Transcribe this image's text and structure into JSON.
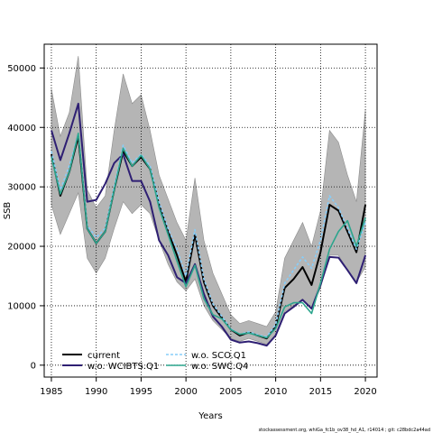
{
  "chart_data": {
    "type": "line",
    "xlabel": "Years",
    "ylabel": "SSB",
    "xlim": [
      1984.2,
      2021.3
    ],
    "ylim": [
      -2000,
      54000
    ],
    "xticks": [
      1985,
      1990,
      1995,
      2000,
      2005,
      2010,
      2015,
      2020
    ],
    "yticks": [
      0,
      10000,
      20000,
      30000,
      40000,
      50000
    ],
    "grid": true,
    "legend_position": "bottom-left",
    "x": [
      1985,
      1986,
      1987,
      1988,
      1989,
      1990,
      1991,
      1992,
      1993,
      1994,
      1995,
      1996,
      1997,
      1998,
      1999,
      2000,
      2001,
      2002,
      2003,
      2004,
      2005,
      2006,
      2007,
      2008,
      2009,
      2010,
      2011,
      2012,
      2013,
      2014,
      2015,
      2016,
      2017,
      2018,
      2019,
      2020
    ],
    "band": {
      "upper": [
        46500,
        38500,
        42500,
        52000,
        29500,
        26500,
        28500,
        39500,
        49000,
        44000,
        45500,
        39500,
        32000,
        28000,
        24000,
        21000,
        31500,
        21000,
        15500,
        12000,
        8500,
        7000,
        7500,
        7000,
        6500,
        9000,
        18000,
        21000,
        24000,
        20000,
        26000,
        39500,
        37500,
        32000,
        27500,
        43000
      ],
      "lower": [
        27000,
        22000,
        25500,
        29000,
        18000,
        15500,
        18000,
        23000,
        27500,
        25500,
        27000,
        25500,
        21000,
        17000,
        14000,
        12500,
        14500,
        10000,
        7500,
        6000,
        4500,
        4000,
        4500,
        4000,
        3500,
        5000,
        9000,
        10000,
        11000,
        9500,
        13000,
        18500,
        18500,
        16000,
        14000,
        16500
      ]
    },
    "series": [
      {
        "name": "current",
        "color": "#000000",
        "dash": "solid",
        "values": [
          35500,
          28500,
          32500,
          38500,
          23000,
          20500,
          22500,
          29500,
          36000,
          33500,
          35000,
          33000,
          27000,
          22500,
          18500,
          14000,
          22000,
          14000,
          10000,
          8000,
          6000,
          5000,
          5500,
          5000,
          4500,
          6500,
          13000,
          14500,
          16500,
          13500,
          19000,
          27000,
          26000,
          22500,
          19000,
          27000
        ]
      },
      {
        "name": "w.o. WCIBTS.Q1",
        "color": "#2e1f73",
        "dash": "solid",
        "values": [
          39500,
          34500,
          39000,
          44000,
          27500,
          27800,
          30500,
          34000,
          35500,
          31000,
          31000,
          27500,
          21000,
          18500,
          14800,
          13800,
          17000,
          12000,
          8200,
          6500,
          4300,
          3800,
          4000,
          3700,
          3300,
          5000,
          8700,
          9800,
          11000,
          9500,
          13500,
          18200,
          18100,
          16000,
          13800,
          18500
        ]
      },
      {
        "name": "w.o. SCO.Q1",
        "color": "#87cefa",
        "dash": "dashed",
        "values": [
          36000,
          29500,
          33500,
          39000,
          23500,
          21500,
          23000,
          30000,
          37000,
          34000,
          35500,
          33500,
          27500,
          23000,
          19500,
          15000,
          22800,
          14500,
          10300,
          8200,
          6100,
          5200,
          5600,
          5100,
          4800,
          6800,
          13800,
          16000,
          18200,
          16300,
          21000,
          28500,
          26500,
          23000,
          19500,
          24000
        ]
      },
      {
        "name": "w.o. SWC.Q4",
        "color": "#2ca58d",
        "dash": "solid",
        "values": [
          35000,
          28800,
          32500,
          39000,
          23000,
          20500,
          22500,
          29500,
          36500,
          33500,
          35300,
          33000,
          26500,
          22000,
          17500,
          13200,
          16800,
          11200,
          8500,
          7800,
          6000,
          5200,
          5400,
          5000,
          4600,
          6200,
          9800,
          10500,
          10500,
          8700,
          13800,
          19500,
          22500,
          24300,
          20000,
          24800
        ]
      }
    ]
  },
  "footer": {
    "text": "stockassessment.org, whiGa_fc1b_ov38_hd_A1, r14014 ; git: c28bdc2a44ad"
  }
}
